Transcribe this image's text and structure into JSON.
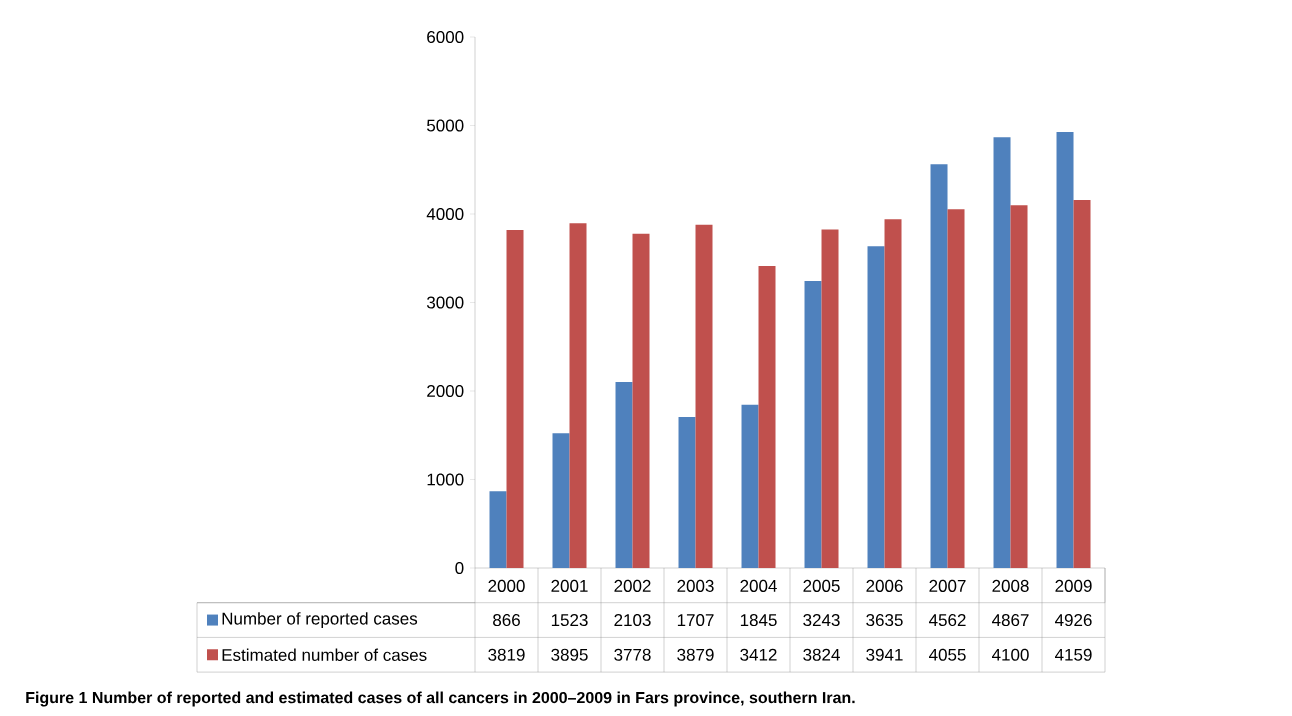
{
  "chart_data": {
    "type": "bar",
    "title": "**Figure 1** Number of reported and estimated cases of all cancers in 2000–2009 in Fars province, southern Iran.",
    "categories": [
      "2000",
      "2001",
      "2002",
      "2003",
      "2004",
      "2005",
      "2006",
      "2007",
      "2008",
      "2009"
    ],
    "series": [
      {
        "name": "Number of reported cases",
        "color": "#4f81bd",
        "values": [
          866,
          1523,
          2103,
          1707,
          1845,
          3243,
          3635,
          4562,
          4867,
          4926
        ]
      },
      {
        "name": "Estimated number of cases",
        "color": "#c0504d",
        "values": [
          3819,
          3895,
          3778,
          3879,
          3412,
          3824,
          3941,
          4055,
          4100,
          4159
        ]
      }
    ],
    "ylim": [
      0,
      6000
    ],
    "yticks": [
      0,
      1000,
      2000,
      3000,
      4000,
      5000,
      6000
    ],
    "data_labels": true,
    "legend": "bottom",
    "grid": false
  }
}
